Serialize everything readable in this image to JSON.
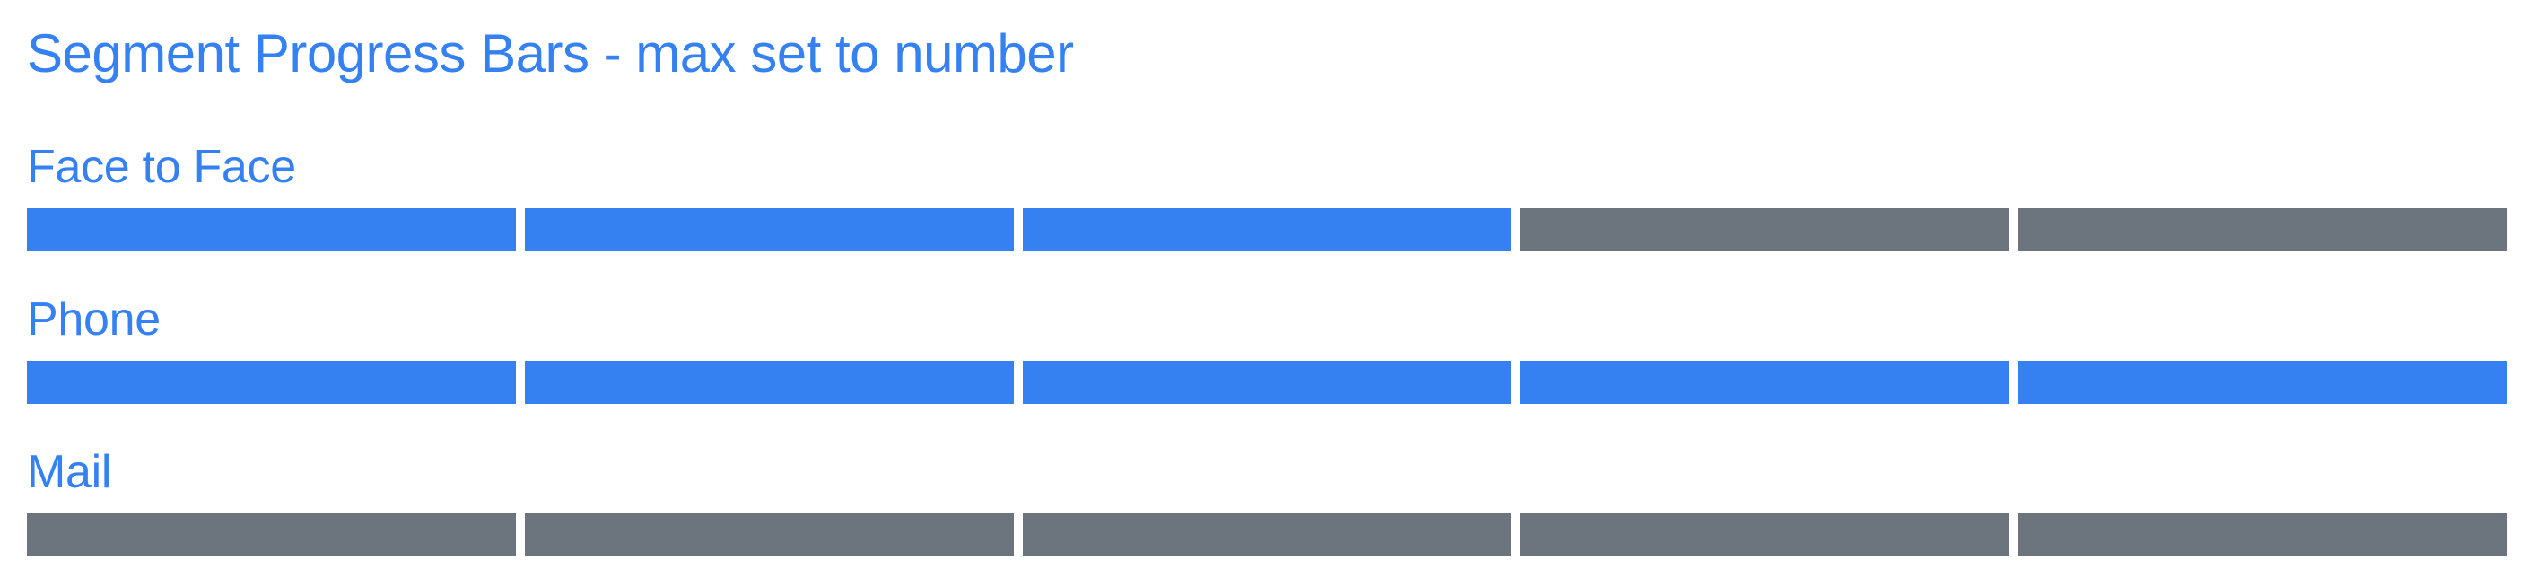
{
  "title": "Segment Progress Bars - max set to number",
  "colors": {
    "filled": "#3581f2",
    "empty": "#6c757d",
    "text": "#3581f2"
  },
  "groups": [
    {
      "label": "Face to Face",
      "value": 3,
      "max": 5
    },
    {
      "label": "Phone",
      "value": 5,
      "max": 5
    },
    {
      "label": "Mail",
      "value": 0,
      "max": 5
    }
  ]
}
